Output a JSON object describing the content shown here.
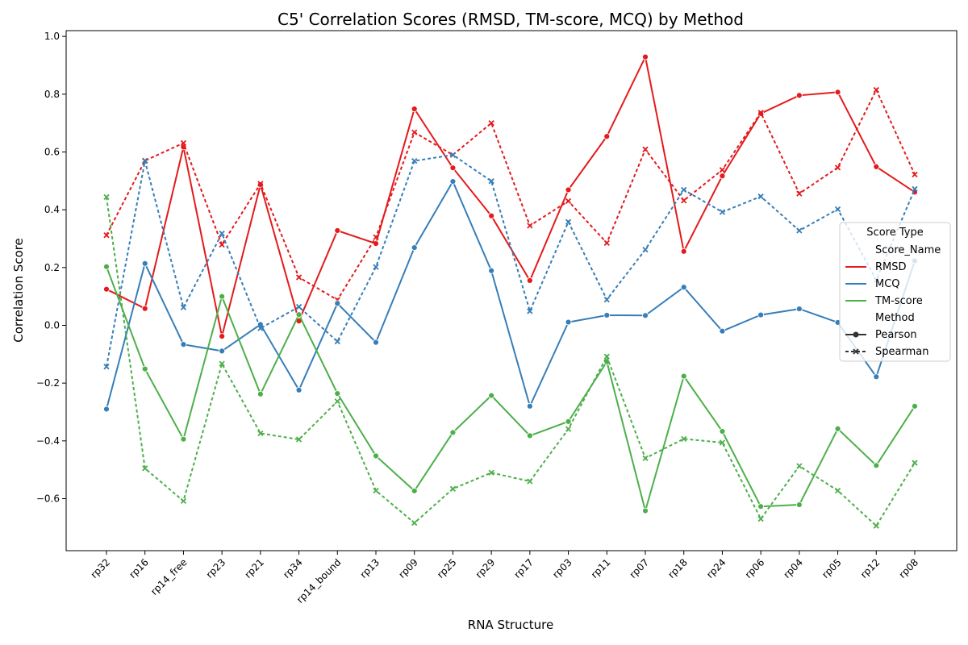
{
  "chart_data": {
    "type": "line",
    "title": "C5' Correlation Scores (RMSD, TM-score, MCQ) by Method",
    "xlabel": "RNA Structure",
    "ylabel": "Correlation Score",
    "ylim": [
      -0.78,
      1.02
    ],
    "yticks": [
      "−0.6",
      "−0.4",
      "−0.2",
      "0.0",
      "0.2",
      "0.4",
      "0.6",
      "0.8",
      "1.0"
    ],
    "grid": false,
    "categories": [
      "rp32",
      "rp16",
      "rp14_free",
      "rp23",
      "rp21",
      "rp34",
      "rp14_bound",
      "rp13",
      "rp09",
      "rp25",
      "rp29",
      "rp17",
      "rp03",
      "rp11",
      "rp07",
      "rp18",
      "rp24",
      "rp06",
      "rp04",
      "rp05",
      "rp12",
      "rp08"
    ],
    "colors": {
      "RMSD": "#e41a1c",
      "MCQ": "#377eb8",
      "TM-score": "#4daf4a"
    },
    "series": [
      {
        "score": "RMSD",
        "method": "Pearson",
        "values": [
          0.125,
          0.058,
          0.617,
          -0.038,
          0.487,
          0.015,
          0.328,
          0.283,
          0.749,
          0.545,
          0.379,
          0.155,
          0.469,
          0.654,
          0.929,
          0.256,
          0.517,
          0.733,
          0.796,
          0.807,
          0.549,
          0.461
        ]
      },
      {
        "score": "RMSD",
        "method": "Spearman",
        "values": [
          0.312,
          0.57,
          0.631,
          0.279,
          0.49,
          0.166,
          0.088,
          0.305,
          0.668,
          0.59,
          0.7,
          0.345,
          0.43,
          0.285,
          0.609,
          0.432,
          0.538,
          0.736,
          0.456,
          0.546,
          0.815,
          0.522
        ]
      },
      {
        "score": "MCQ",
        "method": "Pearson",
        "values": [
          -0.29,
          0.214,
          -0.066,
          -0.089,
          0.003,
          -0.224,
          0.076,
          -0.059,
          0.269,
          0.498,
          0.189,
          -0.28,
          0.011,
          0.035,
          0.034,
          0.132,
          -0.02,
          0.036,
          0.057,
          0.01,
          -0.178,
          0.223
        ]
      },
      {
        "score": "MCQ",
        "method": "Spearman",
        "values": [
          -0.143,
          0.569,
          0.062,
          0.318,
          -0.01,
          0.064,
          -0.056,
          0.202,
          0.569,
          0.59,
          0.499,
          0.049,
          0.358,
          0.089,
          0.262,
          0.469,
          0.392,
          0.446,
          0.328,
          0.402,
          0.157,
          0.472
        ]
      },
      {
        "score": "TM-score",
        "method": "Pearson",
        "values": [
          0.203,
          -0.151,
          -0.394,
          0.1,
          -0.238,
          0.037,
          -0.236,
          -0.452,
          -0.573,
          -0.371,
          -0.243,
          -0.382,
          -0.333,
          -0.126,
          -0.642,
          -0.176,
          -0.367,
          -0.627,
          -0.621,
          -0.358,
          -0.485,
          -0.28
        ]
      },
      {
        "score": "TM-score",
        "method": "Spearman",
        "values": [
          0.444,
          -0.495,
          -0.608,
          -0.133,
          -0.374,
          -0.395,
          -0.263,
          -0.572,
          -0.684,
          -0.566,
          -0.51,
          -0.54,
          -0.359,
          -0.108,
          -0.46,
          -0.393,
          -0.406,
          -0.67,
          -0.487,
          -0.572,
          -0.694,
          -0.476
        ]
      }
    ],
    "legend": {
      "placement": "center-right",
      "title": "Score Type",
      "hue_header": "Score_Name",
      "hue_items": [
        "RMSD",
        "MCQ",
        "TM-score"
      ],
      "style_header": "Method",
      "style_items": [
        "Pearson",
        "Spearman"
      ]
    }
  }
}
